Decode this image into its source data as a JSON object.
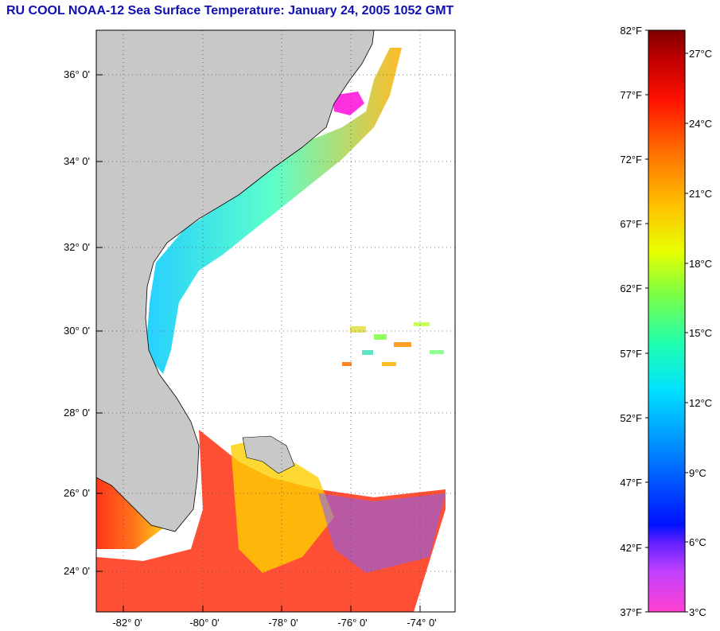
{
  "title": "RU COOL  NOAA-12  Sea Surface Temperature:  January 24, 2005 1052 GMT",
  "map": {
    "lat_labels": [
      "36° 0'",
      "34° 0'",
      "32° 0'",
      "30° 0'",
      "28° 0'",
      "26° 0'",
      "24° 0'"
    ],
    "lon_labels": [
      "-82° 0'",
      "-80° 0'",
      "-78° 0'",
      "-76° 0'",
      "-74° 0'"
    ],
    "lat_range": [
      23,
      37
    ],
    "lon_range": [
      -83,
      -73
    ],
    "land_color": "#c8c8c8",
    "grid": "dotted"
  },
  "colorbar": {
    "fahrenheit_labels": [
      "82°F",
      "77°F",
      "72°F",
      "67°F",
      "62°F",
      "57°F",
      "52°F",
      "47°F",
      "42°F",
      "37°F"
    ],
    "celsius_labels": [
      "27°C",
      "24°C",
      "21°C",
      "18°C",
      "15°C",
      "12°C",
      "9°C",
      "6°C",
      "3°C"
    ],
    "range_f": [
      37,
      82
    ],
    "colors_bottom_to_top": [
      "#ff40d0",
      "#c040ff",
      "#6020ff",
      "#0010ff",
      "#0080ff",
      "#00e0ff",
      "#20ffb0",
      "#80ff40",
      "#e8ff00",
      "#ffc000",
      "#ff7000",
      "#ff1000",
      "#c00000",
      "#800000"
    ]
  }
}
